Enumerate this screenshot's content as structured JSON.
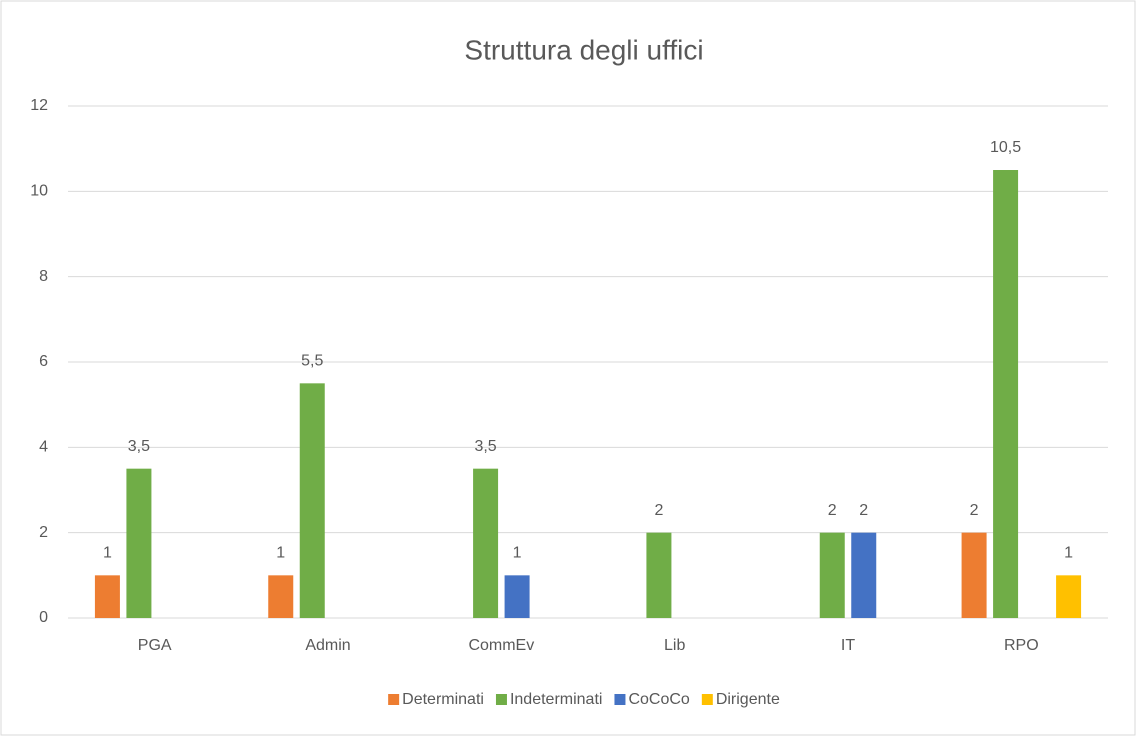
{
  "chart_data": {
    "type": "bar",
    "title": "Struttura degli uffici",
    "categories": [
      "PGA",
      "Admin",
      "CommEv",
      "Lib",
      "IT",
      "RPO"
    ],
    "series": [
      {
        "name": "Determinati",
        "color": "#ed7d31",
        "values": [
          1,
          1,
          null,
          null,
          null,
          2
        ]
      },
      {
        "name": "Indeterminati",
        "color": "#70ad47",
        "values": [
          3.5,
          5.5,
          3.5,
          2,
          2,
          10.5
        ],
        "value_labels": [
          "3,5",
          "5,5",
          "3,5",
          "2",
          "2",
          "10,5"
        ]
      },
      {
        "name": "CoCoCo",
        "color": "#4472c4",
        "values": [
          null,
          null,
          1,
          null,
          2,
          null
        ]
      },
      {
        "name": "Dirigente",
        "color": "#ffc000",
        "values": [
          null,
          null,
          null,
          null,
          null,
          1
        ]
      }
    ],
    "ylim": [
      0,
      12
    ],
    "yticks": [
      0,
      2,
      4,
      6,
      8,
      10,
      12
    ],
    "grid": true,
    "legend": "bottom"
  }
}
